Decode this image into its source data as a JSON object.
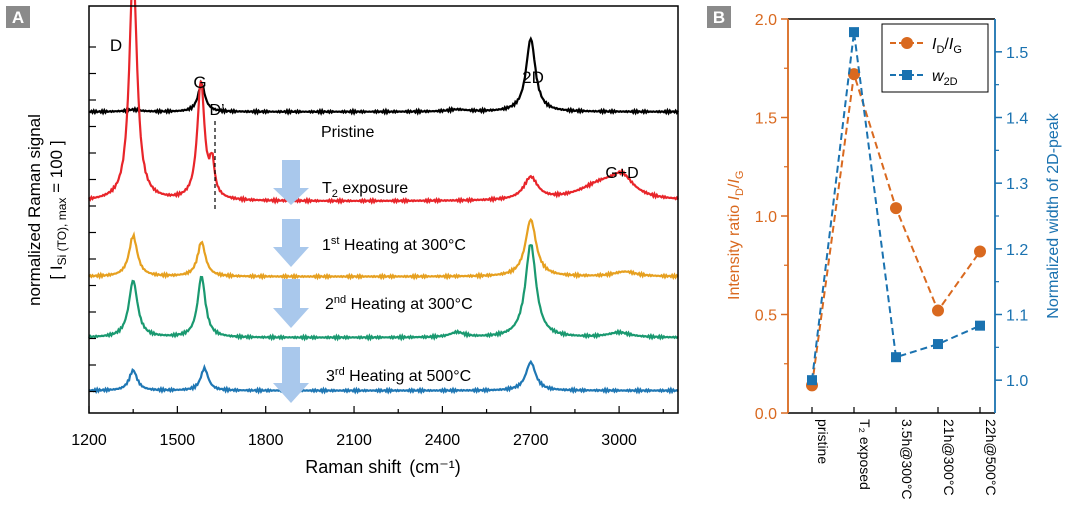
{
  "chart_data": [
    {
      "panel": "A",
      "type": "line",
      "xlabel": "Raman shift",
      "xunit": "(cm⁻¹)",
      "ylabel_line1": "normalized Raman signal",
      "ylabel_line2": "[ I",
      "ylabel_sub": "Si (TO), max",
      "ylabel_end": " = 100 ]",
      "xlim": [
        1200,
        3200
      ],
      "xticks": [
        "1200",
        "1500",
        "1800",
        "2100",
        "2400",
        "2700",
        "3000"
      ],
      "peak_labels": [
        "D",
        "G",
        "D’",
        "2D",
        "G+D"
      ],
      "series": [
        {
          "label": "Pristine",
          "color": "#000000",
          "offset": 0.74,
          "peaks": [
            [
              1350,
              0.005,
              30
            ],
            [
              1582,
              0.07,
              14
            ],
            [
              2700,
              0.18,
              19
            ],
            [
              2450,
              0.005,
              40
            ]
          ]
        },
        {
          "label": "T₂ exposure",
          "color": "#e8252a",
          "offset": 0.52,
          "peaks": [
            [
              1350,
              0.57,
              16
            ],
            [
              1580,
              0.29,
              15
            ],
            [
              1618,
              0.08,
              10
            ],
            [
              2700,
              0.055,
              28
            ],
            [
              2940,
              0.04,
              90
            ],
            [
              3010,
              0.045,
              45
            ]
          ]
        },
        {
          "label": "1st Heating at 300°C",
          "color": "#e6a020",
          "offset": 0.335,
          "peaks": [
            [
              1350,
              0.1,
              17
            ],
            [
              1582,
              0.085,
              16
            ],
            [
              2700,
              0.14,
              22
            ],
            [
              3020,
              0.012,
              45
            ]
          ]
        },
        {
          "label": "2nd Heating at 300°C",
          "color": "#1a9970",
          "offset": 0.185,
          "peaks": [
            [
              1350,
              0.14,
              18
            ],
            [
              1582,
              0.15,
              16
            ],
            [
              2700,
              0.23,
              22
            ],
            [
              2450,
              0.012,
              30
            ],
            [
              3000,
              0.012,
              45
            ]
          ]
        },
        {
          "label": "3rd Heating at 500°C",
          "color": "#1f77b4",
          "offset": 0.055,
          "peaks": [
            [
              1350,
              0.05,
              16
            ],
            [
              1592,
              0.055,
              15
            ],
            [
              2700,
              0.07,
              20
            ]
          ]
        }
      ],
      "curve_labels": [
        "Pristine",
        "T",
        "2",
        " exposure",
        "1",
        "st",
        " Heating at 300°C",
        "2",
        "nd",
        " Heating at 300°C",
        "3",
        "rd",
        " Heating at 500°C"
      ]
    },
    {
      "panel": "B",
      "type": "line",
      "categories": [
        "pristine",
        "T₂ exposed",
        "3.5h@300°C",
        "21h@300°C",
        "22h@500°C"
      ],
      "y_left": {
        "label_prefix": "Intensity ratio ",
        "label_var": "I",
        "label_sub1": "D",
        "label_mid": "/",
        "label_sub2": "G",
        "range": [
          0,
          2.0
        ],
        "ticks": [
          "0.0",
          "0.5",
          "1.0",
          "1.5",
          "2.0"
        ],
        "color": "#d9691f"
      },
      "y_right": {
        "label": "Normalized width of 2D-peak",
        "range": [
          0.95,
          1.55
        ],
        "ticks": [
          "1.0",
          "1.1",
          "1.2",
          "1.3",
          "1.4",
          "1.5"
        ],
        "color": "#1a72b0"
      },
      "series": [
        {
          "name": "I_D/I_G",
          "axis": "left",
          "values": [
            0.14,
            1.72,
            1.04,
            0.52,
            0.82
          ]
        },
        {
          "name": "w_2D",
          "axis": "right",
          "values": [
            1.0,
            1.53,
            1.035,
            1.055,
            1.083
          ]
        }
      ],
      "legend": {
        "s1_var_a": "I",
        "s1_sub_a": "D",
        "s1_mid": "/",
        "s1_var_b": "I",
        "s1_sub_b": "G",
        "s2_var": "w",
        "s2_sub": "2D",
        "placement": "top-right"
      }
    }
  ],
  "panel_labels": {
    "a": "A",
    "b": "B"
  }
}
